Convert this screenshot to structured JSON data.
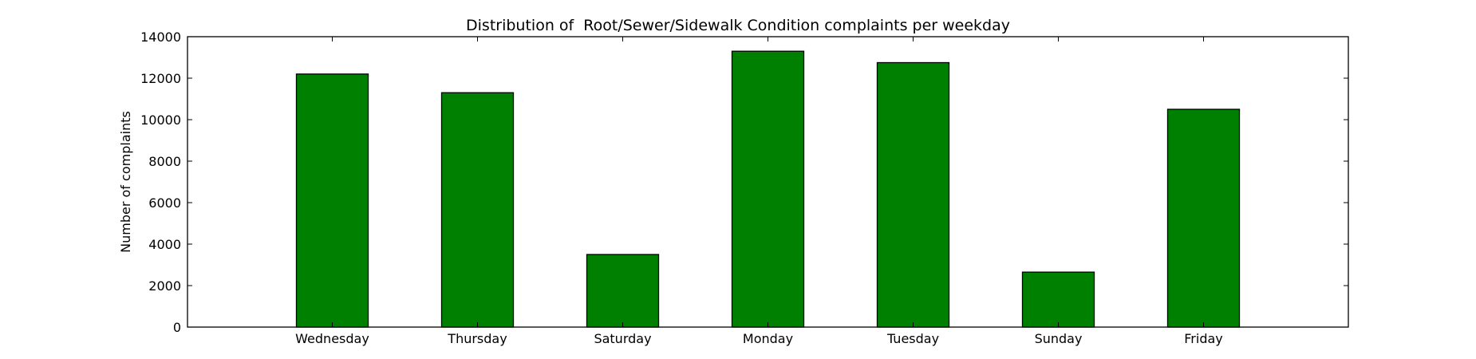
{
  "chart_data": {
    "type": "bar",
    "title": "Distribution of  Root/Sewer/Sidewalk Condition complaints per weekday",
    "xlabel": "",
    "ylabel": "Number of complaints",
    "categories": [
      "Wednesday",
      "Thursday",
      "Saturday",
      "Monday",
      "Tuesday",
      "Sunday",
      "Friday"
    ],
    "values": [
      12200,
      11300,
      3500,
      13300,
      12750,
      2650,
      10500
    ],
    "ylim": [
      0,
      14000
    ],
    "yticks": [
      "0",
      "2000",
      "4000",
      "6000",
      "8000",
      "10000",
      "12000",
      "14000"
    ],
    "bar_color": "#008000",
    "grid": false,
    "legend": "none"
  }
}
